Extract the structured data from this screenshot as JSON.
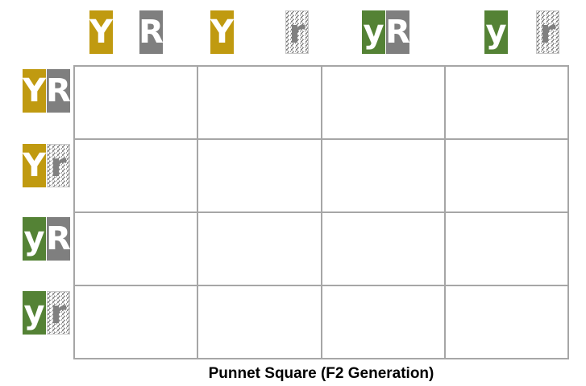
{
  "colors": {
    "Y": "#c09a10",
    "y": "#548235",
    "R": "#7f7f7f",
    "r": "pattern-zigzag-gray"
  },
  "top_gametes": [
    {
      "first": "Y",
      "second": "R"
    },
    {
      "first": "Y",
      "second": "r"
    },
    {
      "first": "y",
      "second": "R"
    },
    {
      "first": "y",
      "second": "r"
    }
  ],
  "side_gametes": [
    {
      "first": "Y",
      "second": "R"
    },
    {
      "first": "Y",
      "second": "r"
    },
    {
      "first": "y",
      "second": "R"
    },
    {
      "first": "y",
      "second": "r"
    }
  ],
  "grid": {
    "rows": 4,
    "cols": 4
  },
  "caption": "Punnet Square (F2 Generation)"
}
